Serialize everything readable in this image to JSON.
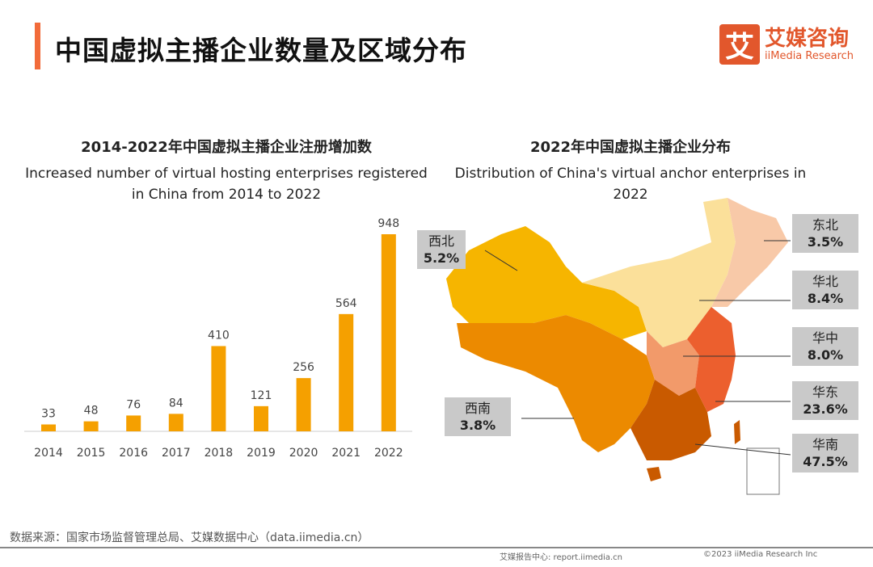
{
  "header": {
    "title": "中国虚拟主播企业数量及区域分布",
    "logo_icon_char": "艾",
    "logo_cn": "艾媒咨询",
    "logo_en": "iiMedia Research",
    "accent_color": "#f26b3a"
  },
  "chart_data": [
    {
      "type": "bar",
      "title": "2014-2022年中国虚拟主播企业注册增加数",
      "subtitle_line1": "Increased number of virtual hosting enterprises registered",
      "subtitle_line2": "in China from 2014 to 2022",
      "categories": [
        "2014",
        "2015",
        "2016",
        "2017",
        "2018",
        "2019",
        "2020",
        "2021",
        "2022"
      ],
      "values": [
        33,
        48,
        76,
        84,
        410,
        121,
        256,
        564,
        948
      ],
      "color": "#f5a000",
      "grid": false
    },
    {
      "type": "map",
      "title": "2022年中国虚拟主播企业分布",
      "subtitle": "Distribution of China's virtual anchor enterprises in 2022",
      "regions": [
        {
          "name": "西北",
          "value": "5.2%"
        },
        {
          "name": "东北",
          "value": "3.5%"
        },
        {
          "name": "华北",
          "value": "8.4%"
        },
        {
          "name": "华中",
          "value": "8.0%"
        },
        {
          "name": "西南",
          "value": "3.8%"
        },
        {
          "name": "华东",
          "value": "23.6%"
        },
        {
          "name": "华南",
          "value": "47.5%"
        }
      ]
    }
  ],
  "footer": {
    "source": "数据来源：国家市场监督管理总局、艾媒数据中心（data.iimedia.cn）",
    "report": "艾媒报告中心: report.iimedia.cn",
    "copyright": "©2023  iiMedia Research  Inc"
  }
}
